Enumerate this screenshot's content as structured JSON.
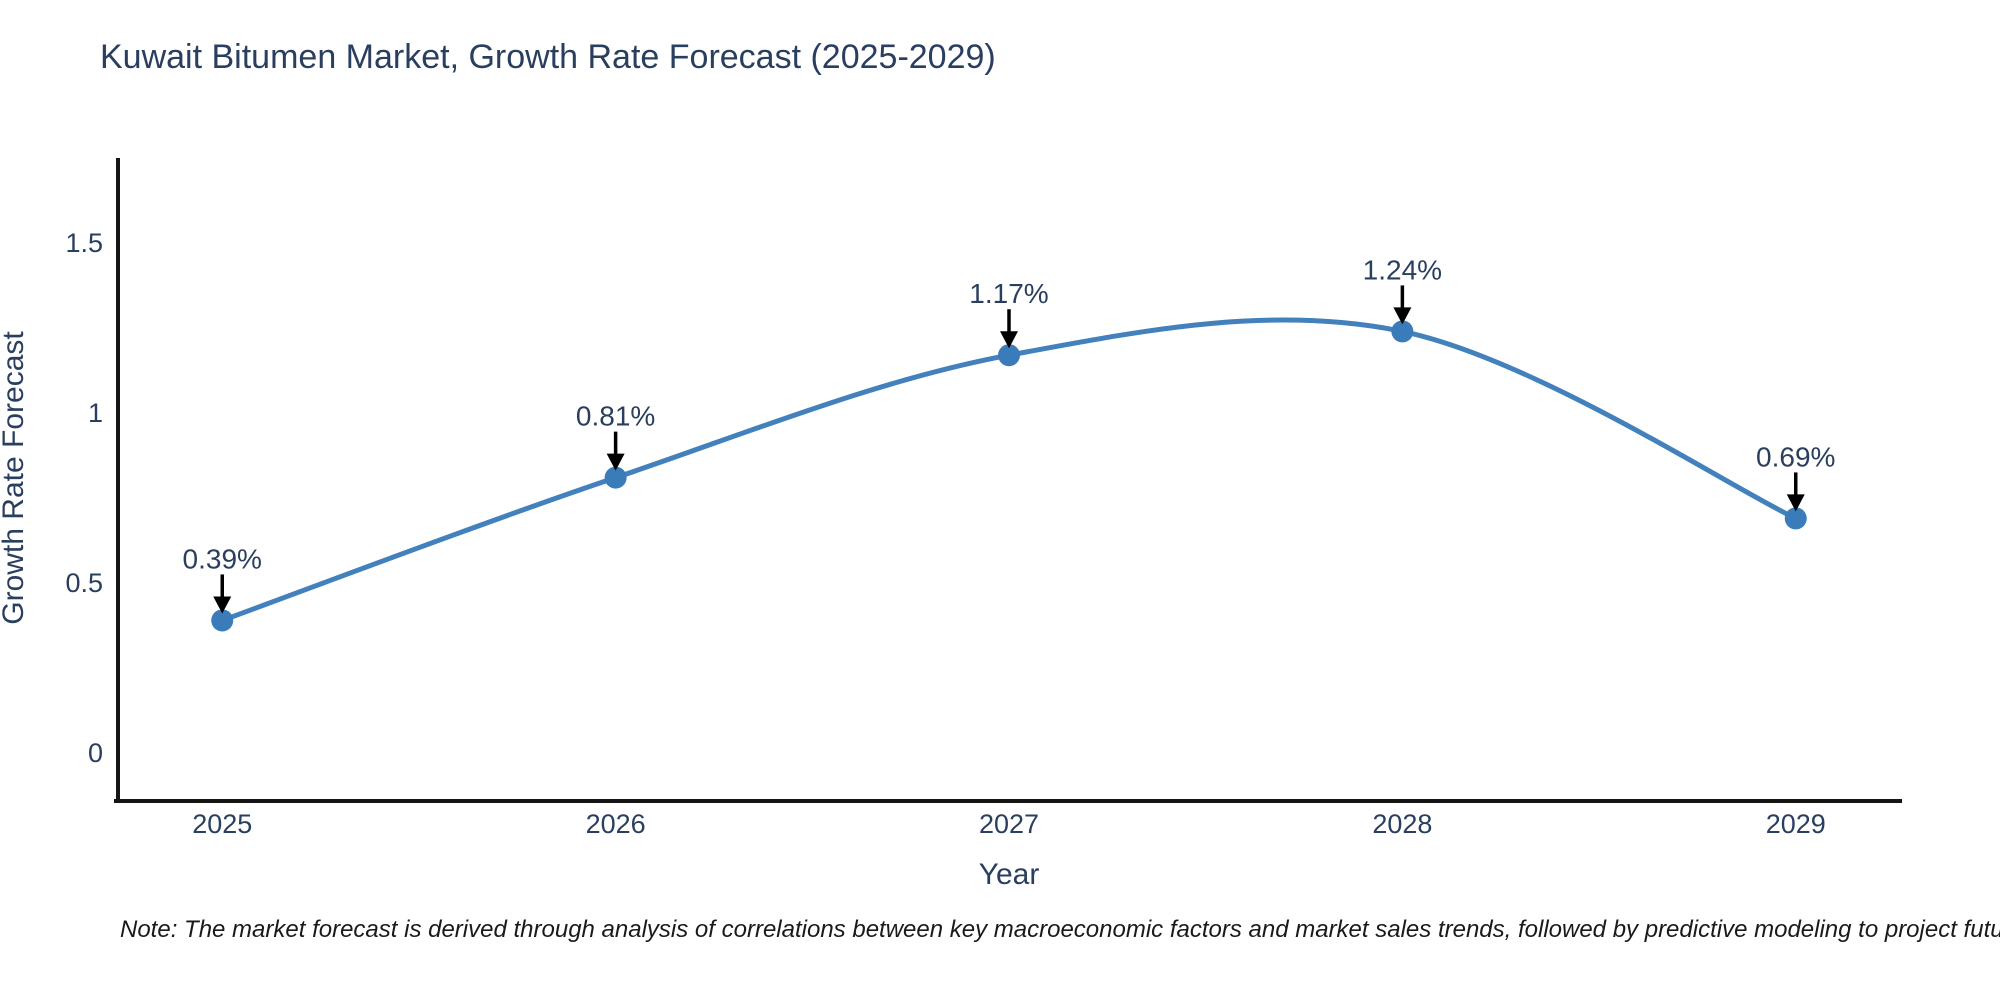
{
  "chart_data": {
    "type": "line",
    "title": "Kuwait Bitumen Market, Growth Rate Forecast (2025-2029)",
    "xlabel": "Year",
    "ylabel": "Growth Rate Forecast",
    "categories": [
      2025,
      2026,
      2027,
      2028,
      2029
    ],
    "values": [
      0.39,
      0.81,
      1.17,
      1.24,
      0.69
    ],
    "point_labels": [
      "0.39%",
      "0.81%",
      "1.17%",
      "1.24%",
      "0.69%"
    ],
    "y_ticks": [
      0,
      0.5,
      1,
      1.5
    ],
    "y_tick_labels": [
      "0",
      "0.5",
      "1",
      "1.5"
    ],
    "ylim": [
      -0.141,
      1.75
    ],
    "xlim": [
      2024.735,
      2029.265
    ],
    "line_shape": "spline",
    "grid": false,
    "legend": false,
    "colors": {
      "line": "#4381bd",
      "marker": "#3a7cba",
      "axis": "#151515",
      "text": "#2a3f5f",
      "annotation_arrow": "#000000",
      "background": "#ffffff"
    },
    "note": "Note: The market forecast is derived through analysis of correlations between key macroeconomic factors and market sales trends, followed by predictive modeling to project future sales"
  }
}
